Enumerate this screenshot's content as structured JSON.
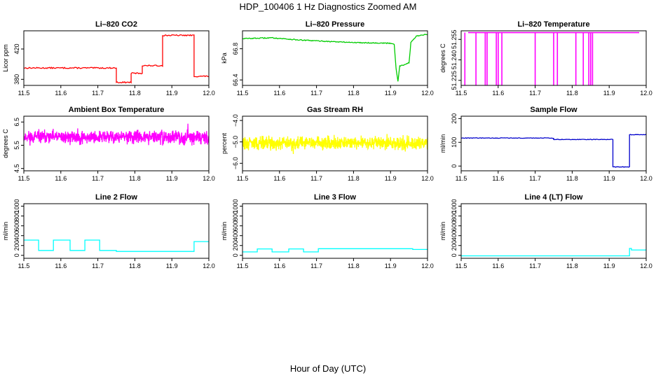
{
  "figure": {
    "title": "HDP_100406  1 Hz Diagnostics Zoomed AM",
    "xlabel": "Hour of Day (UTC)"
  },
  "chart_data": [
    {
      "type": "line",
      "title": "Li–820 CO2",
      "ylabel": "Licor ppm",
      "color": "#ff0000",
      "xlim": [
        11.5,
        12.0
      ],
      "ylim": [
        372,
        444
      ],
      "xticks": [
        "11.5",
        "11.6",
        "11.7",
        "11.8",
        "11.9",
        "12.0"
      ],
      "yticks": [
        {
          "v": 380,
          "label": "380"
        },
        {
          "v": 420,
          "label": "420"
        }
      ],
      "segments": [
        [
          11.5,
          11.75,
          395
        ],
        [
          11.75,
          11.79,
          376
        ],
        [
          11.79,
          11.82,
          388
        ],
        [
          11.82,
          11.875,
          398
        ],
        [
          11.875,
          11.96,
          438
        ],
        [
          11.96,
          12.0,
          384
        ]
      ],
      "noise": 0.8,
      "style": "steps"
    },
    {
      "type": "line",
      "title": "Li–820 Pressure",
      "ylabel": "kPa",
      "color": "#00cc00",
      "xlim": [
        11.5,
        12.0
      ],
      "ylim": [
        66.33,
        67.03
      ],
      "xticks": [
        "11.5",
        "11.6",
        "11.7",
        "11.8",
        "11.9",
        "12.0"
      ],
      "yticks": [
        {
          "v": 66.4,
          "label": "66.4"
        },
        {
          "v": 66.8,
          "label": "66.8"
        }
      ],
      "points": [
        [
          11.5,
          66.93
        ],
        [
          11.58,
          66.94
        ],
        [
          11.66,
          66.91
        ],
        [
          11.75,
          66.89
        ],
        [
          11.8,
          66.88
        ],
        [
          11.9,
          66.87
        ],
        [
          11.91,
          66.86
        ],
        [
          11.915,
          66.55
        ],
        [
          11.92,
          66.38
        ],
        [
          11.925,
          66.58
        ],
        [
          11.94,
          66.6
        ],
        [
          11.95,
          66.62
        ],
        [
          11.955,
          66.88
        ],
        [
          11.97,
          66.96
        ],
        [
          11.99,
          66.98
        ],
        [
          12.0,
          66.98
        ]
      ],
      "noise": 0.006,
      "style": "steps"
    },
    {
      "type": "line",
      "title": "Li–820 Temperature",
      "ylabel": "degrees C",
      "color": "#ff00ff",
      "xlim": [
        11.5,
        12.0
      ],
      "ylim": [
        51.2213,
        51.2613
      ],
      "xticks": [
        "11.5",
        "11.6",
        "11.7",
        "11.8",
        "11.9",
        "12.0"
      ],
      "yticks": [
        {
          "v": 51.225,
          "label": "51.225"
        },
        {
          "v": 51.24,
          "label": "51.240"
        },
        {
          "v": 51.255,
          "label": "51.255"
        }
      ],
      "base": 51.26,
      "drops": [
        11.51,
        11.54,
        11.565,
        11.57,
        11.595,
        11.6,
        11.61,
        11.7,
        11.75,
        11.76,
        11.81,
        11.83,
        11.845,
        11.85,
        11.855
      ],
      "drop_to": 51.2213
    },
    {
      "type": "line",
      "title": "Ambient Box Temperature",
      "ylabel": "degrees C",
      "color": "#ff00ff",
      "xlim": [
        11.5,
        12.0
      ],
      "ylim": [
        4.4,
        6.75
      ],
      "xticks": [
        "11.5",
        "11.6",
        "11.7",
        "11.8",
        "11.9",
        "12.0"
      ],
      "yticks": [
        {
          "v": 4.5,
          "label": "4.5"
        },
        {
          "v": 5.5,
          "label": "5.5"
        },
        {
          "v": 6.5,
          "label": "6.5"
        }
      ],
      "mean": 5.85,
      "spread": 0.4,
      "seed": 11,
      "style": "noise"
    },
    {
      "type": "line",
      "title": "Gas Stream RH",
      "ylabel": "percent",
      "color": "#ffff00",
      "xlim": [
        11.5,
        12.0
      ],
      "ylim": [
        -6.35,
        -3.8
      ],
      "xticks": [
        "11.5",
        "11.6",
        "11.7",
        "11.8",
        "11.9",
        "12.0"
      ],
      "yticks": [
        {
          "v": -6.0,
          "label": "−6.0"
        },
        {
          "v": -5.0,
          "label": "−5.0"
        },
        {
          "v": -4.0,
          "label": "−4.0"
        }
      ],
      "mean": -5.05,
      "spread": 0.45,
      "seed": 29,
      "style": "noise"
    },
    {
      "type": "line",
      "title": "Sample Flow",
      "ylabel": "ml/min",
      "color": "#0000cc",
      "xlim": [
        11.5,
        12.0
      ],
      "ylim": [
        -20,
        210
      ],
      "xticks": [
        "11.5",
        "11.6",
        "11.7",
        "11.8",
        "11.9",
        "12.0"
      ],
      "yticks": [
        {
          "v": 0,
          "label": "0"
        },
        {
          "v": 100,
          "label": "100"
        },
        {
          "v": 200,
          "label": "200"
        }
      ],
      "segments": [
        [
          11.5,
          11.75,
          118
        ],
        [
          11.75,
          11.91,
          112
        ],
        [
          11.91,
          11.955,
          -4
        ],
        [
          11.955,
          12.0,
          132
        ]
      ],
      "noise": 1.2,
      "style": "steps"
    },
    {
      "type": "line",
      "title": "Line 2 Flow",
      "ylabel": "ml/min",
      "color": "#00ffff",
      "xlim": [
        11.5,
        12.0
      ],
      "ylim": [
        -60,
        1050
      ],
      "xticks": [
        "11.5",
        "11.6",
        "11.7",
        "11.8",
        "11.9",
        "12.0"
      ],
      "yticks": [
        {
          "v": 0,
          "label": "0"
        },
        {
          "v": 200,
          "label": "200"
        },
        {
          "v": 400,
          "label": "400"
        },
        {
          "v": 600,
          "label": "600"
        },
        {
          "v": 800,
          "label": "800"
        },
        {
          "v": 1000,
          "label": "1000"
        }
      ],
      "segments": [
        [
          11.5,
          11.54,
          310
        ],
        [
          11.54,
          11.58,
          100
        ],
        [
          11.58,
          11.625,
          310
        ],
        [
          11.625,
          11.665,
          100
        ],
        [
          11.665,
          11.705,
          310
        ],
        [
          11.705,
          11.75,
          100
        ],
        [
          11.75,
          11.96,
          80
        ],
        [
          11.96,
          12.0,
          280
        ]
      ],
      "noise": 0,
      "style": "steps"
    },
    {
      "type": "line",
      "title": "Line 3 Flow",
      "ylabel": "ml/min",
      "color": "#00ffff",
      "xlim": [
        11.5,
        12.0
      ],
      "ylim": [
        -60,
        1050
      ],
      "xticks": [
        "11.5",
        "11.6",
        "11.7",
        "11.8",
        "11.9",
        "12.0"
      ],
      "yticks": [
        {
          "v": 0,
          "label": "0"
        },
        {
          "v": 200,
          "label": "200"
        },
        {
          "v": 400,
          "label": "400"
        },
        {
          "v": 600,
          "label": "600"
        },
        {
          "v": 800,
          "label": "800"
        },
        {
          "v": 1000,
          "label": "1000"
        }
      ],
      "segments": [
        [
          11.5,
          11.54,
          70
        ],
        [
          11.54,
          11.58,
          130
        ],
        [
          11.58,
          11.625,
          70
        ],
        [
          11.625,
          11.665,
          130
        ],
        [
          11.665,
          11.705,
          70
        ],
        [
          11.705,
          11.96,
          135
        ],
        [
          11.96,
          12.0,
          120
        ]
      ],
      "noise": 0,
      "style": "steps"
    },
    {
      "type": "line",
      "title": "Line 4 (LT) Flow",
      "ylabel": "ml/min",
      "color": "#00ffff",
      "xlim": [
        11.5,
        12.0
      ],
      "ylim": [
        -60,
        1050
      ],
      "xticks": [
        "11.5",
        "11.6",
        "11.7",
        "11.8",
        "11.9",
        "12.0"
      ],
      "yticks": [
        {
          "v": 0,
          "label": "0"
        },
        {
          "v": 200,
          "label": "200"
        },
        {
          "v": 400,
          "label": "400"
        },
        {
          "v": 600,
          "label": "600"
        },
        {
          "v": 800,
          "label": "800"
        },
        {
          "v": 1000,
          "label": "1000"
        }
      ],
      "segments": [
        [
          11.5,
          11.955,
          -10
        ],
        [
          11.955,
          11.96,
          140
        ],
        [
          11.96,
          12.0,
          110
        ]
      ],
      "noise": 0,
      "style": "steps"
    }
  ]
}
